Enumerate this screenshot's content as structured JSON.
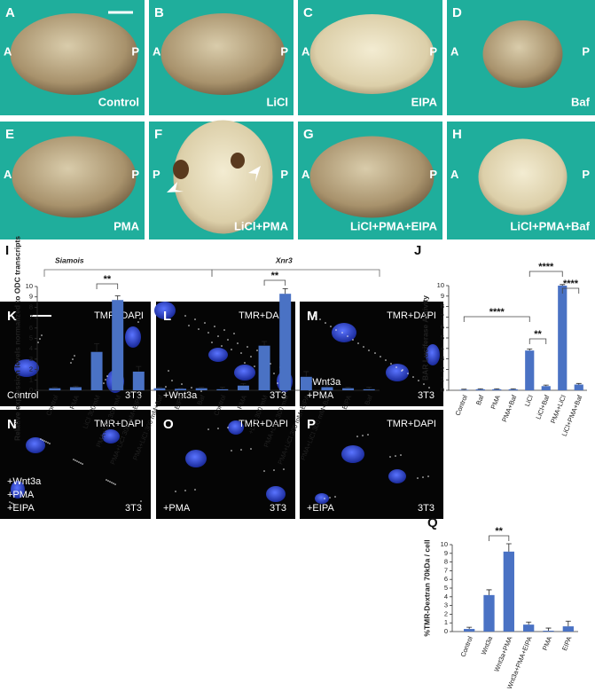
{
  "panels": [
    {
      "letter": "A",
      "marks": [
        "A",
        "P"
      ],
      "caption": "Control"
    },
    {
      "letter": "B",
      "marks": [
        "A",
        "P"
      ],
      "caption": "LiCl"
    },
    {
      "letter": "C",
      "marks": [
        "A",
        "P"
      ],
      "caption": "EIPA"
    },
    {
      "letter": "D",
      "marks": [
        "A",
        "P"
      ],
      "caption": "Baf"
    },
    {
      "letter": "E",
      "marks": [
        "A",
        "P"
      ],
      "caption": "PMA"
    },
    {
      "letter": "F",
      "marks": [
        "P",
        "P"
      ],
      "caption": "LiCl+PMA"
    },
    {
      "letter": "G",
      "marks": [
        "A",
        "P"
      ],
      "caption": "LiCl+PMA+EIPA"
    },
    {
      "letter": "H",
      "marks": [
        "A",
        "P"
      ],
      "caption": "LiCl+PMA+Baf"
    }
  ],
  "micrographs": [
    {
      "letter": "K",
      "stain": "TMR+DAPI",
      "caption": [
        "Control"
      ],
      "cells": "3T3"
    },
    {
      "letter": "L",
      "stain": "TMR+DAPI",
      "caption": [
        "+Wnt3a"
      ],
      "cells": "3T3"
    },
    {
      "letter": "M",
      "stain": "TMR+DAPI",
      "caption": [
        "+Wnt3a",
        "+PMA"
      ],
      "cells": "3T3"
    },
    {
      "letter": "N",
      "stain": "TMR+DAPI",
      "caption": [
        "+Wnt3a",
        "+PMA",
        "+EIPA"
      ],
      "cells": "3T3"
    },
    {
      "letter": "O",
      "stain": "TMR+DAPI",
      "caption": [
        "+PMA"
      ],
      "cells": "3T3"
    },
    {
      "letter": "P",
      "stain": "TMR+DAPI",
      "caption": [
        "+EIPA"
      ],
      "cells": "3T3"
    }
  ],
  "chart_data": [
    {
      "type": "bar",
      "panel": "I",
      "ylabel": "Relative expression levels normalized to ODC transcripts",
      "color": "#4a72c4",
      "groups": [
        {
          "name": "Siamois",
          "categories": [
            "Control",
            "PMA",
            "LiCl 300mM",
            "PMA+LiCl 300 mM",
            "PMA+LiCl 300 mM+EIPA",
            "PMA+LiCl 300 mM+Baf",
            "EIPA",
            "Baf"
          ],
          "values": [
            0.2,
            0.3,
            3.7,
            8.7,
            1.8,
            0.2,
            0.15,
            0.2
          ],
          "errors": [
            0.1,
            0.1,
            0.8,
            0.4,
            0.5,
            0.1,
            0.05,
            0.1
          ]
        },
        {
          "name": "Xnr3",
          "categories": [
            "Control",
            "PMA",
            "+LiCl 300 mM",
            "PMA+LiCl 300 mM",
            "PMA+LiCl 300 mM+EIPA",
            "PMA+LiCl 300 mM+Baf",
            "EIPA",
            "Baf"
          ],
          "values": [
            0.1,
            0.45,
            4.3,
            9.3,
            1.3,
            0.3,
            0.2,
            0.1
          ],
          "errors": [
            0.2,
            0.2,
            0.4,
            0.5,
            0.5,
            0.2,
            0.1,
            0.2
          ]
        }
      ],
      "ylim": [
        0,
        10
      ],
      "yticks": [
        0,
        1,
        2,
        3,
        4,
        5,
        6,
        7,
        8,
        9,
        10
      ],
      "annotations": [
        "**",
        "**"
      ]
    },
    {
      "type": "bar",
      "panel": "J",
      "ylabel": "BAR Luciferase Activity",
      "color": "#4a72c4",
      "categories": [
        "Control",
        "Baf",
        "PMA",
        "PMA+Baf",
        "LiCl",
        "LiCl+Baf",
        "PMA+LiCl",
        "LiCl+PMA+Baf"
      ],
      "values": [
        0.05,
        0.1,
        0.1,
        0.1,
        3.8,
        0.4,
        10,
        0.55
      ],
      "errors": [
        0.05,
        0.05,
        0.05,
        0.05,
        0.15,
        0.1,
        0.1,
        0.1
      ],
      "ylim": [
        0,
        10
      ],
      "yticks": [
        0,
        1,
        2,
        3,
        4,
        5,
        6,
        7,
        8,
        9,
        10
      ],
      "annotations": [
        "****",
        "**",
        "****",
        "****"
      ]
    },
    {
      "type": "bar",
      "panel": "Q",
      "ylabel": "%TMR-Dextran 70kDa / cell",
      "color": "#4a72c4",
      "categories": [
        "Control",
        "Wnt3a",
        "Wnt3a+PMA",
        "Wnt3a+PMA+EIPA",
        "PMA",
        "EIPA"
      ],
      "values": [
        0.3,
        4.2,
        9.2,
        0.8,
        0.1,
        0.6
      ],
      "errors": [
        0.2,
        0.6,
        0.9,
        0.3,
        0.3,
        0.6
      ],
      "ylim": [
        0,
        10
      ],
      "yticks": [
        0,
        1,
        2,
        3,
        4,
        5,
        6,
        7,
        8,
        9,
        10
      ],
      "annotations": [
        "**"
      ]
    }
  ]
}
